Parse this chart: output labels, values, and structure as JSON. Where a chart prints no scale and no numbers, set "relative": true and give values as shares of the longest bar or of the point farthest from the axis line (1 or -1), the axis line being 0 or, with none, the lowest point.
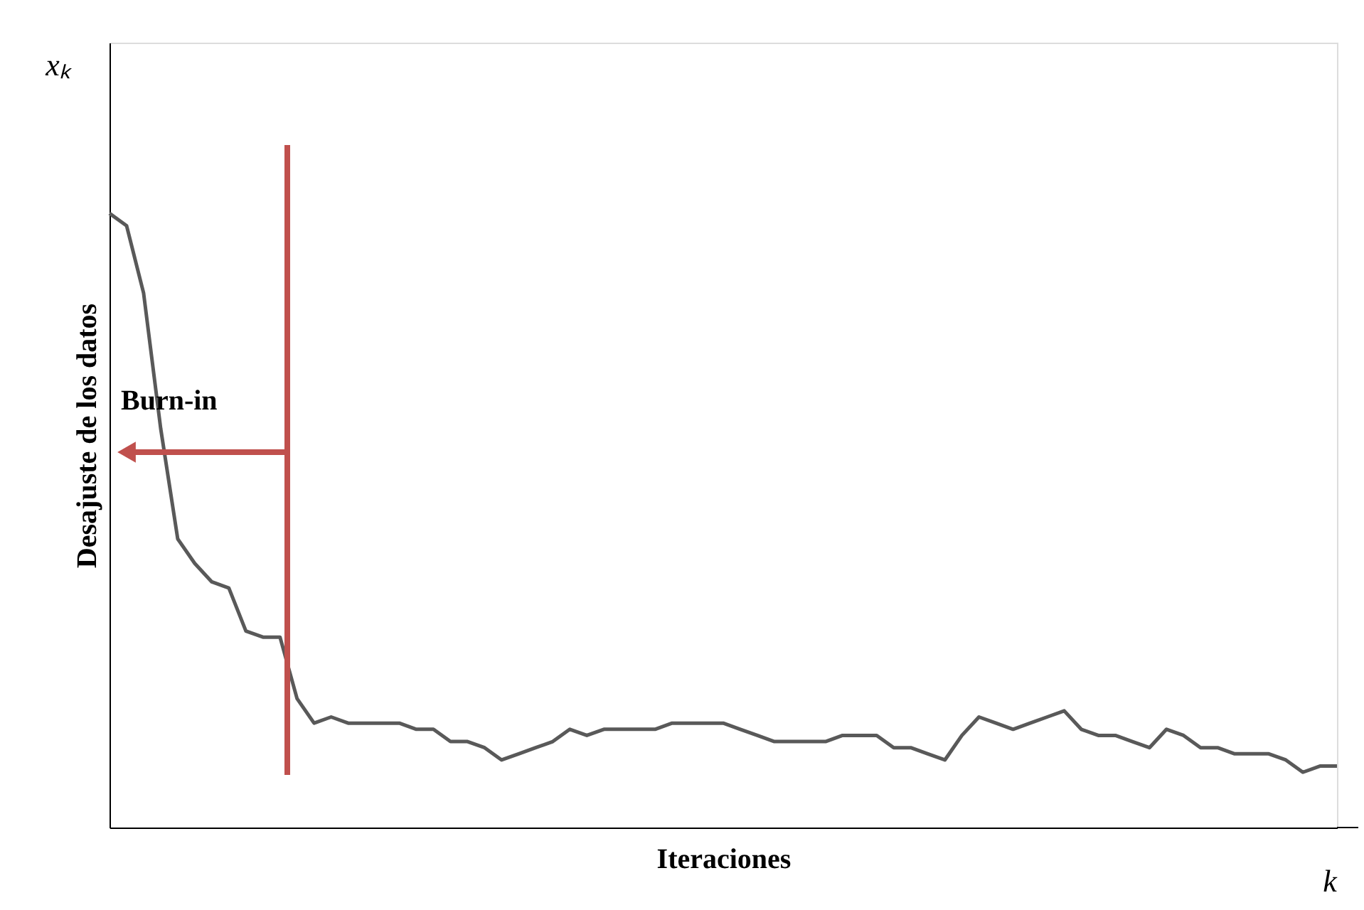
{
  "chart_data": {
    "type": "line",
    "relative": true,
    "xlabel": "Iteraciones",
    "ylabel": "Desajuste de los datos",
    "annotations": [
      "Burn-in",
      "xₖ",
      "k"
    ],
    "categories": [
      null,
      null,
      null,
      null,
      null,
      null,
      null,
      null,
      null,
      null,
      null,
      null,
      null,
      null,
      null,
      null,
      null,
      null,
      null,
      null,
      null,
      null,
      null,
      null,
      null,
      null,
      null,
      null,
      null,
      null,
      null,
      null,
      null,
      null,
      null,
      null,
      null,
      null,
      null,
      null,
      null,
      null,
      null,
      null,
      null,
      null,
      null,
      null,
      null,
      null,
      null,
      null,
      null,
      null,
      null,
      null,
      null,
      null,
      null,
      null,
      null,
      null,
      null,
      null,
      null,
      null,
      null,
      null,
      null,
      null,
      null,
      null,
      null
    ],
    "series": [
      {
        "color": "#595959",
        "values": [
          1.0,
          0.98,
          0.87,
          0.65,
          0.47,
          0.43,
          0.4,
          0.39,
          0.32,
          0.31,
          0.31,
          0.21,
          0.17,
          0.18,
          0.17,
          0.17,
          0.17,
          0.17,
          0.16,
          0.16,
          0.14,
          0.14,
          0.13,
          0.11,
          0.12,
          0.13,
          0.14,
          0.16,
          0.15,
          0.16,
          0.16,
          0.16,
          0.16,
          0.17,
          0.17,
          0.17,
          0.17,
          0.16,
          0.15,
          0.14,
          0.14,
          0.14,
          0.14,
          0.15,
          0.15,
          0.15,
          0.13,
          0.13,
          0.12,
          0.11,
          0.15,
          0.18,
          0.17,
          0.16,
          0.17,
          0.18,
          0.19,
          0.16,
          0.15,
          0.15,
          0.14,
          0.13,
          0.16,
          0.15,
          0.13,
          0.13,
          0.12,
          0.12,
          0.12,
          0.11,
          0.09,
          0.1,
          0.1
        ]
      }
    ],
    "grid": false,
    "marker": "none",
    "line_style": "solid"
  }
}
